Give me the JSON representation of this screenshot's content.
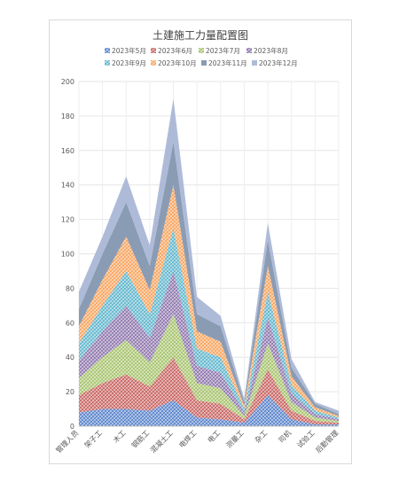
{
  "chart_data": {
    "type": "area",
    "stacked": true,
    "title": "土建施工力量配置图",
    "xlabel": "",
    "ylabel": "",
    "ylim": [
      0,
      200
    ],
    "yticks": [
      0,
      20,
      40,
      60,
      80,
      100,
      120,
      140,
      160,
      180,
      200
    ],
    "grid": true,
    "legend_position": "top",
    "categories": [
      "管理人员",
      "架子工",
      "木工",
      "钢筋工",
      "混凝土工",
      "电焊工",
      "电工",
      "测量工",
      "杂工",
      "司机",
      "试验工",
      "后勤管理"
    ],
    "series": [
      {
        "name": "2023年5月",
        "color": "#4472c4",
        "values": [
          8,
          10,
          10,
          9,
          15,
          5,
          4,
          2,
          18,
          4,
          1,
          1
        ]
      },
      {
        "name": "2023年6月",
        "color": "#c0504d",
        "values": [
          10,
          15,
          20,
          14,
          25,
          10,
          9,
          2,
          15,
          5,
          2,
          1
        ]
      },
      {
        "name": "2023年7月",
        "color": "#9bbb59",
        "values": [
          10,
          15,
          20,
          14,
          25,
          10,
          9,
          2,
          15,
          5,
          2,
          1
        ]
      },
      {
        "name": "2023年8月",
        "color": "#8064a2",
        "values": [
          10,
          15,
          20,
          14,
          25,
          10,
          9,
          2,
          15,
          5,
          2,
          1
        ]
      },
      {
        "name": "2023年9月",
        "color": "#4bacc6",
        "values": [
          10,
          15,
          20,
          14,
          25,
          10,
          9,
          2,
          15,
          5,
          2,
          1
        ]
      },
      {
        "name": "2023年10月",
        "color": "#f79646",
        "values": [
          10,
          15,
          20,
          14,
          25,
          10,
          9,
          2,
          15,
          5,
          2,
          1
        ]
      },
      {
        "name": "2023年11月",
        "color": "#8497b0",
        "values": [
          10,
          15,
          20,
          14,
          25,
          10,
          9,
          2,
          15,
          5,
          2,
          1
        ]
      },
      {
        "name": "2023年12月",
        "color": "#a9b7d6",
        "values": [
          10,
          10,
          15,
          12,
          25,
          10,
          6,
          2,
          10,
          5,
          1,
          2
        ]
      }
    ]
  }
}
